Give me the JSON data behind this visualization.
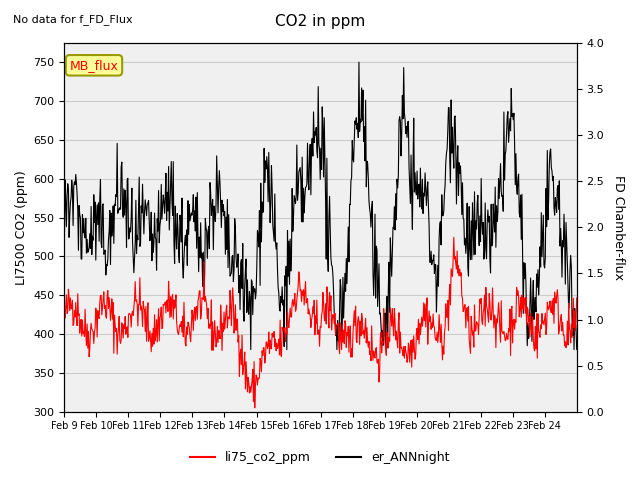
{
  "title": "CO2 in ppm",
  "subtitle": "No data for f_FD_Flux",
  "ylabel_left": "LI7500 CO2 (ppm)",
  "ylabel_right": "FD Chamber-flux",
  "ylim_left": [
    300,
    775
  ],
  "ylim_right": [
    0.0,
    4.0
  ],
  "yticks_left": [
    300,
    350,
    400,
    450,
    500,
    550,
    600,
    650,
    700,
    750
  ],
  "yticks_right": [
    0.0,
    0.5,
    1.0,
    1.5,
    2.0,
    2.5,
    3.0,
    3.5,
    4.0
  ],
  "xlabel": "",
  "legend_labels": [
    "li75_co2_ppm",
    "er_ANNnight"
  ],
  "legend_colors": [
    "#ff0000",
    "#000000"
  ],
  "line_color_red": "#ff0000",
  "line_color_black": "#000000",
  "annotation_text": "MB_flux",
  "annotation_color": "#ff0000",
  "annotation_bg": "#ffff99",
  "background_color": "#ffffff",
  "grid_color": "#cccccc",
  "dates": [
    "Feb 9",
    "Feb 10",
    "Feb 11",
    "Feb 12",
    "Feb 13",
    "Feb 14",
    "Feb 15",
    "Feb 16",
    "Feb 17",
    "Feb 18",
    "Feb 19",
    "Feb 20",
    "Feb 21",
    "Feb 22",
    "Feb 23",
    "Feb 24"
  ]
}
